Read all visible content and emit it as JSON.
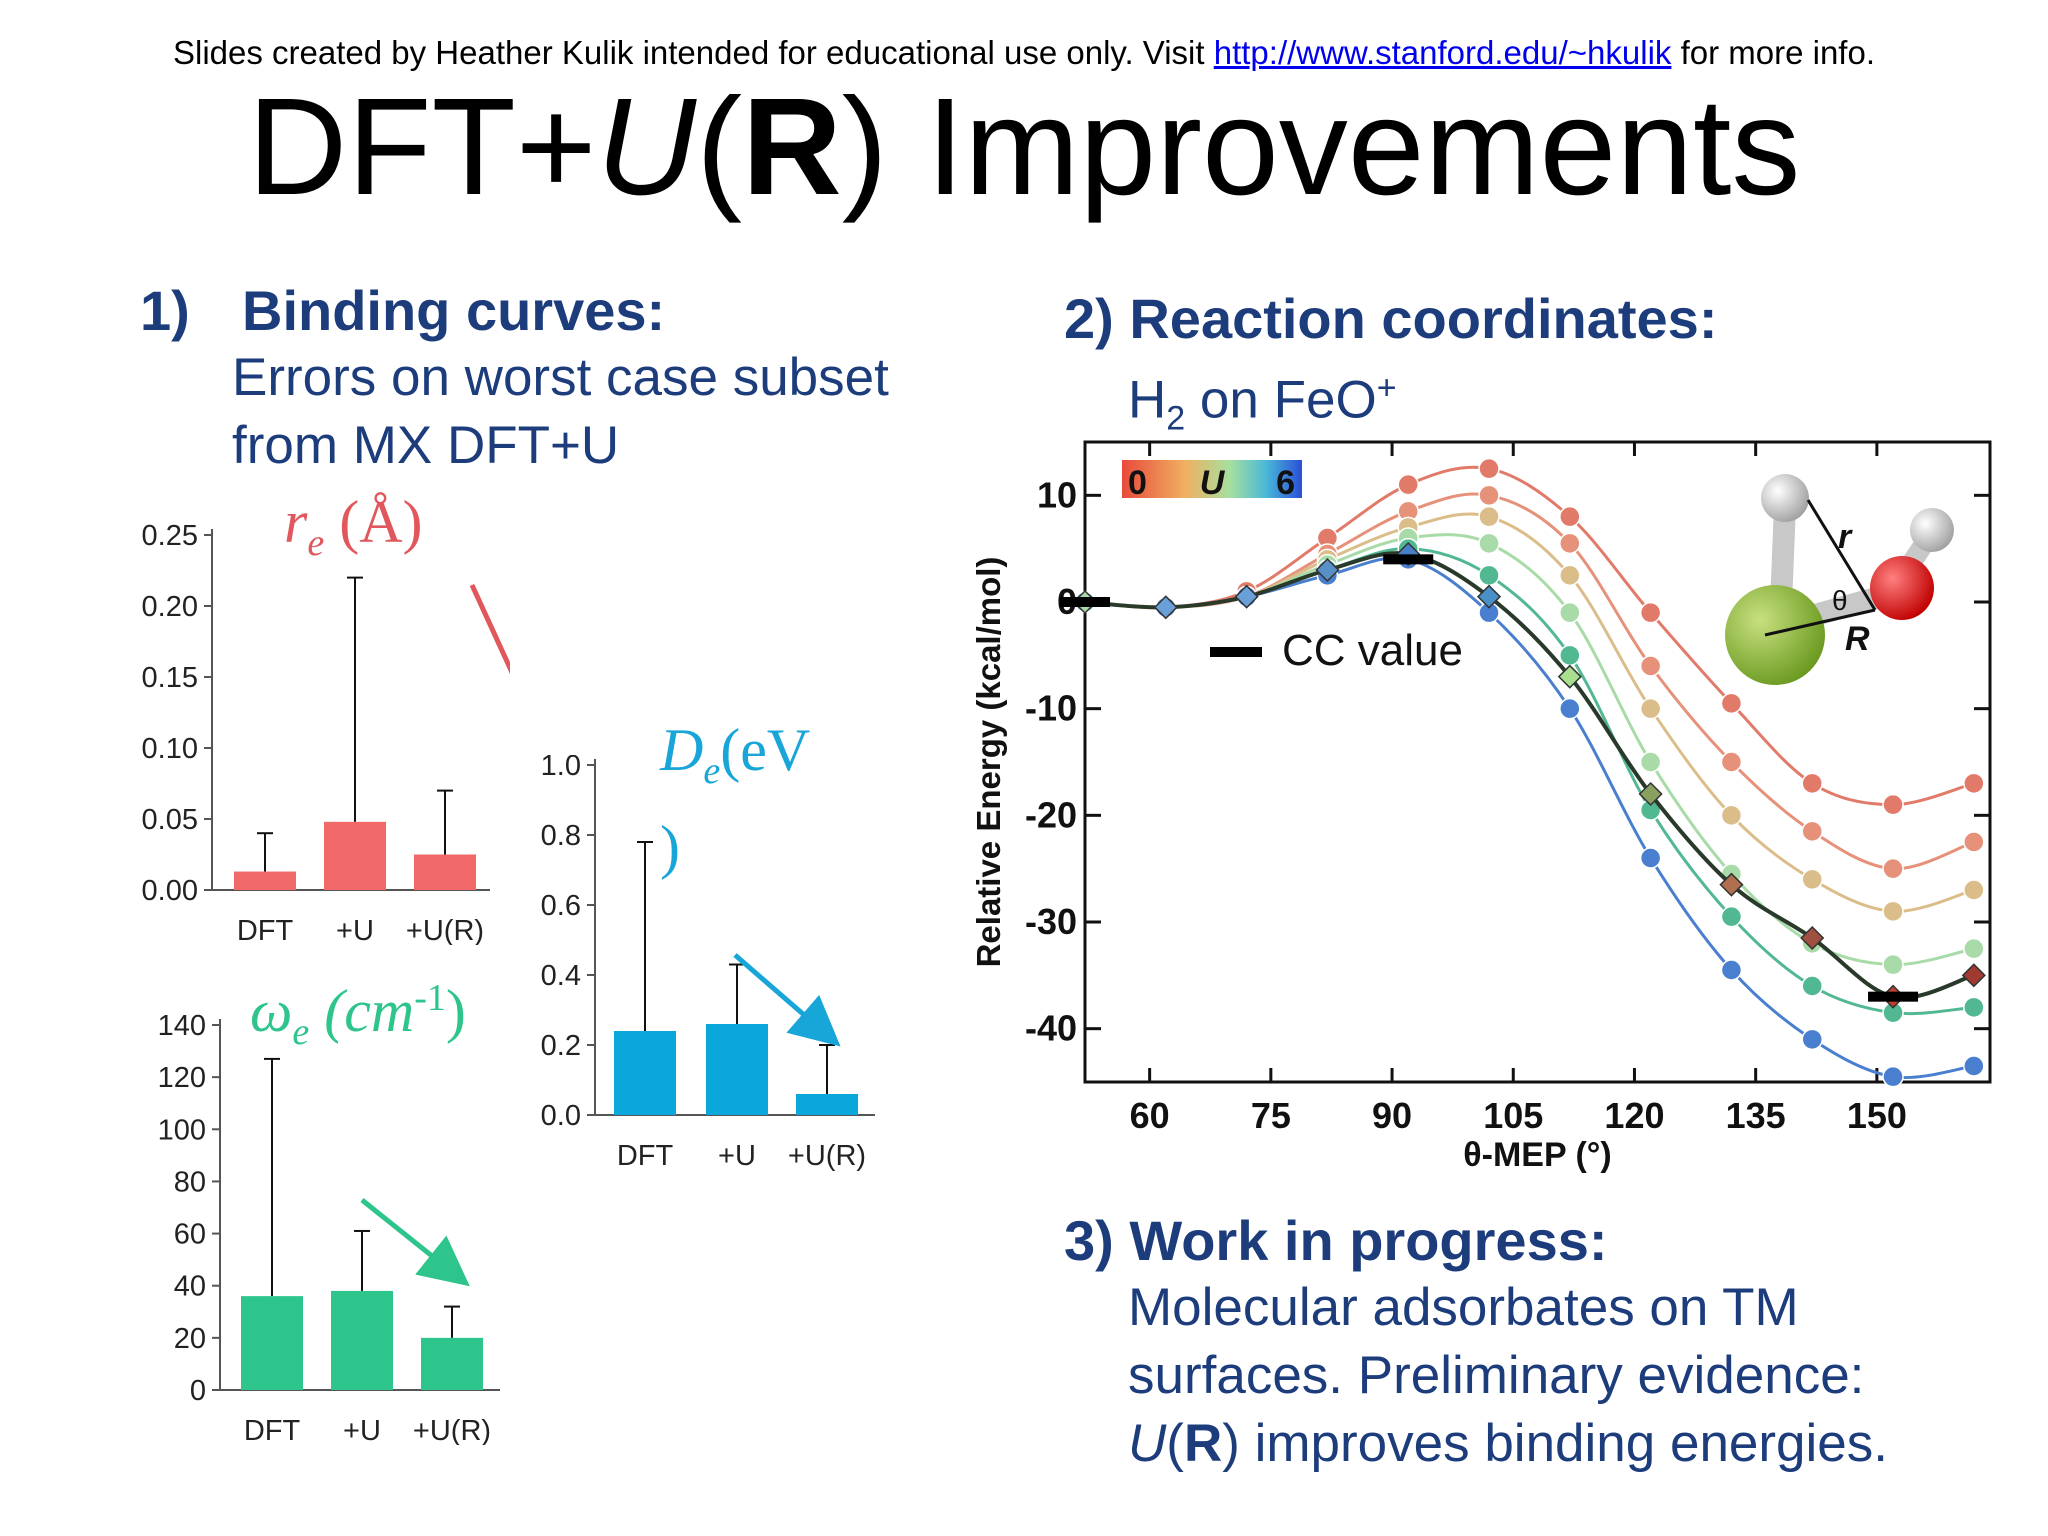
{
  "header": {
    "credit_prefix": "Slides created by Heather Kulik intended for educational use only. Visit ",
    "credit_link": "http://www.stanford.edu/~hkulik",
    "credit_suffix": " for more info.",
    "title_a": "DFT+",
    "title_u": "U",
    "title_open": "(",
    "title_r": "R",
    "title_rest": ") Improvements"
  },
  "section1": {
    "number": "1)",
    "heading": "Binding curves:",
    "line1": "Errors on worst case subset",
    "line2": "from MX DFT+U"
  },
  "section2": {
    "heading": "2) Reaction coordinates:",
    "sub_h": "H",
    "sub_2": "2",
    "sub_on": " on FeO",
    "sub_plus": "+"
  },
  "section3": {
    "heading": "3) Work in progress:",
    "line1": "Molecular adsorbates on TM",
    "line2": "surfaces. Preliminary evidence:",
    "line3_u": "U",
    "line3_open": "(",
    "line3_r": "R",
    "line3_rest": ") improves binding energies."
  },
  "colors": {
    "accent_blue": "#1c3c7c",
    "re_red": "#e0575c",
    "de_blue": "#18a5d8",
    "we_green": "#2ec58c"
  },
  "chart_data": [
    {
      "type": "bar",
      "id": "re",
      "label_sym": "r",
      "label_sub": "e",
      "label_unit": " (Å)",
      "categories": [
        "DFT",
        "+U",
        "+U(R)"
      ],
      "values": [
        0.013,
        0.048,
        0.025
      ],
      "errors_upper": [
        0.04,
        0.22,
        0.07
      ],
      "yticks": [
        "0.00",
        "0.05",
        "0.10",
        "0.15",
        "0.20",
        "0.25"
      ],
      "ylim": [
        0,
        0.25
      ],
      "color": "#f06868"
    },
    {
      "type": "bar",
      "id": "De",
      "label_sym": "D",
      "label_sub": "e",
      "label_unit": "(eV",
      "label_close": ")",
      "categories": [
        "DFT",
        "+U",
        "+U(R)"
      ],
      "values": [
        0.24,
        0.26,
        0.06
      ],
      "errors_upper": [
        0.78,
        0.43,
        0.2
      ],
      "yticks": [
        "0.0",
        "0.2",
        "0.4",
        "0.6",
        "0.8",
        "1.0"
      ],
      "ylim": [
        0,
        1.0
      ],
      "color": "#0aa7da"
    },
    {
      "type": "bar",
      "id": "we",
      "label_sym": "ω",
      "label_sub": "e",
      "label_unit": " (cm",
      "label_sup": "-1",
      "label_close": ")",
      "categories": [
        "DFT",
        "+U",
        "+U(R)"
      ],
      "values": [
        36,
        38,
        20
      ],
      "errors_upper": [
        127,
        61,
        32
      ],
      "yticks": [
        "0",
        "20",
        "40",
        "60",
        "80",
        "100",
        "120",
        "140"
      ],
      "ylim": [
        0,
        140
      ],
      "color": "#2ec58c"
    },
    {
      "type": "line",
      "id": "mep",
      "xlabel": "θ-MEP (°)",
      "ylabel": "Relative Energy (kcal/mol)",
      "xticks": [
        "60",
        "75",
        "90",
        "105",
        "120",
        "135",
        "150"
      ],
      "yticks": [
        "10",
        "0",
        "-10",
        "-20",
        "-30",
        "-40"
      ],
      "xlim": [
        52,
        164
      ],
      "ylim": [
        -45,
        15
      ],
      "x": [
        52,
        62,
        72,
        82,
        92,
        102,
        112,
        122,
        132,
        142,
        152,
        162
      ],
      "series": [
        {
          "color": "#e27a6a",
          "values": [
            0,
            -0.5,
            1,
            6,
            11,
            12.5,
            8,
            -1,
            -9.5,
            -17,
            -19,
            -17
          ]
        },
        {
          "color": "#e6917a",
          "values": [
            0,
            -0.5,
            0.5,
            4.5,
            8.5,
            10,
            5.5,
            -6,
            -15,
            -21.5,
            -25,
            -22.5
          ]
        },
        {
          "color": "#dbbd8a",
          "values": [
            0,
            -0.5,
            0.5,
            4,
            7,
            8,
            2.5,
            -10,
            -20,
            -26,
            -29,
            -27
          ]
        },
        {
          "color": "#a8dba8",
          "values": [
            0,
            -0.5,
            0.5,
            3.5,
            6,
            5.5,
            -1,
            -15,
            -25.5,
            -32,
            -34,
            -32.5
          ]
        },
        {
          "color": "#52b892",
          "values": [
            0,
            -0.5,
            0.5,
            3,
            5,
            2.5,
            -5,
            -19.5,
            -29.5,
            -36,
            -38.5,
            -38
          ]
        },
        {
          "color": "#4a7fcf",
          "values": [
            0,
            -0.5,
            0.5,
            2.5,
            4,
            -1,
            -10,
            -24,
            -34.5,
            -41,
            -44.5,
            -43.5
          ]
        }
      ],
      "ur_series": {
        "name": "U(R)",
        "x": [
          52,
          62,
          72,
          82,
          92,
          102,
          112,
          122,
          132,
          142,
          152,
          162
        ],
        "values": [
          0,
          -0.5,
          0.5,
          3,
          4.5,
          0.5,
          -7,
          -18,
          -26.5,
          -31.5,
          -37,
          -35
        ]
      },
      "cc_value": {
        "label": "CC value",
        "points": [
          [
            52,
            0
          ],
          [
            92,
            4
          ],
          [
            152,
            -37
          ]
        ]
      },
      "colorbar": {
        "min": "0",
        "label": "U",
        "max": "6"
      },
      "inset_axes": {
        "u": "U",
        "theta": "θ",
        "r": "R"
      },
      "molecule_labels": {
        "r": "r",
        "theta": "θ",
        "R": "R"
      }
    }
  ]
}
